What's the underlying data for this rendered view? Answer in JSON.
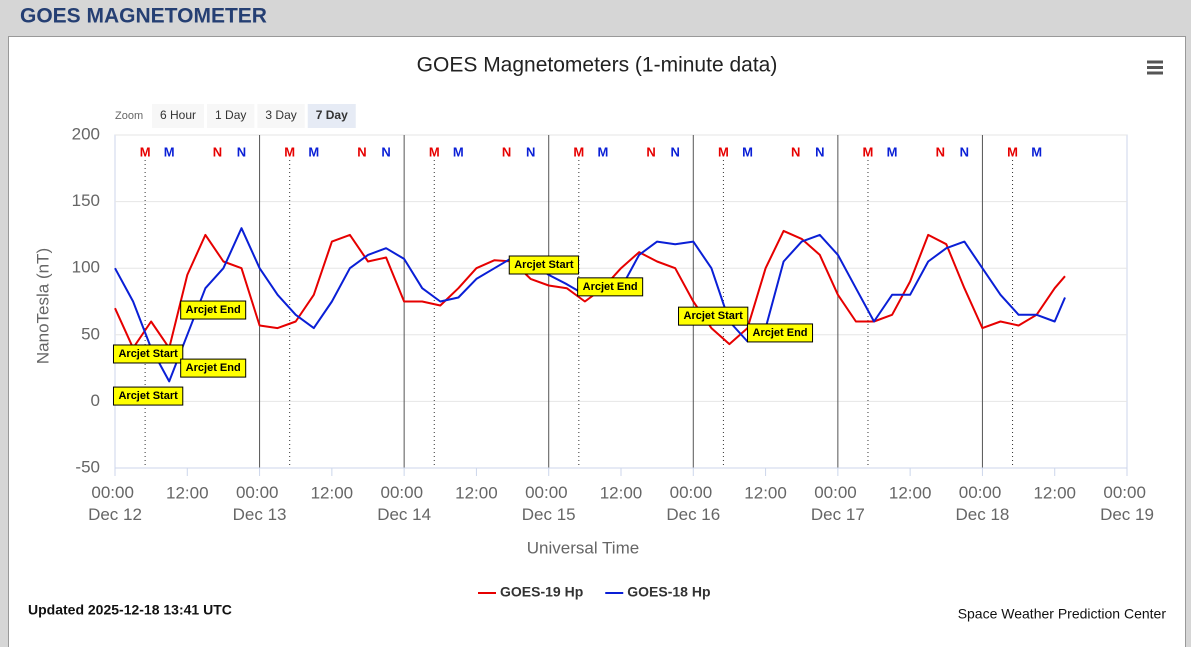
{
  "header": {
    "title": "GOES MAGNETOMETER"
  },
  "zoom": {
    "label": "Zoom",
    "buttons": [
      "6 Hour",
      "1 Day",
      "3 Day",
      "7 Day"
    ],
    "selected": 3
  },
  "footer": {
    "updated": "Updated 2025-12-18 13:41 UTC",
    "credit": "Space Weather Prediction Center"
  },
  "chart_data": {
    "type": "line",
    "title": "GOES Magnetometers (1-minute data)",
    "x_label": "Universal Time",
    "y_label": "NanoTesla (nT)",
    "xlim": [
      0,
      168
    ],
    "xticks": [
      {
        "value": 0,
        "label": "00:00 Dec 12"
      },
      {
        "value": 12,
        "label": "12:00"
      },
      {
        "value": 24,
        "label": "00:00 Dec 13"
      },
      {
        "value": 36,
        "label": "12:00"
      },
      {
        "value": 48,
        "label": "00:00 Dec 14"
      },
      {
        "value": 60,
        "label": "12:00"
      },
      {
        "value": 72,
        "label": "00:00 Dec 15"
      },
      {
        "value": 84,
        "label": "12:00"
      },
      {
        "value": 96,
        "label": "00:00 Dec 16"
      },
      {
        "value": 108,
        "label": "12:00"
      },
      {
        "value": 120,
        "label": "00:00 Dec 17"
      },
      {
        "value": 132,
        "label": "12:00"
      },
      {
        "value": 144,
        "label": "00:00 Dec 18"
      },
      {
        "value": 156,
        "label": "12:00"
      },
      {
        "value": 168,
        "label": "00:00 Dec 19"
      }
    ],
    "ylim": [
      -50,
      200
    ],
    "yticks": [
      -50,
      0,
      50,
      100,
      150,
      200
    ],
    "grid": true,
    "x": [
      0,
      3,
      6,
      9,
      12,
      15,
      18,
      21,
      24,
      27,
      30,
      33,
      36,
      39,
      42,
      45,
      48,
      51,
      54,
      57,
      60,
      63,
      66,
      69,
      72,
      75,
      78,
      81,
      84,
      87,
      90,
      93,
      96,
      99,
      102,
      105,
      108,
      111,
      114,
      117,
      120,
      123,
      126,
      129,
      132,
      135,
      138,
      141,
      144,
      147,
      150,
      153,
      156,
      157.7
    ],
    "series": [
      {
        "name": "GOES-19 Hp",
        "color": "#e60000",
        "values": [
          70,
          40,
          60,
          40,
          95,
          125,
          105,
          100,
          57,
          55,
          60,
          80,
          120,
          125,
          105,
          108,
          75,
          75,
          72,
          85,
          100,
          106,
          105,
          92,
          87,
          85,
          75,
          85,
          100,
          112,
          105,
          100,
          75,
          55,
          43,
          55,
          100,
          128,
          122,
          110,
          80,
          60,
          60,
          65,
          90,
          125,
          118,
          85,
          55,
          60,
          57,
          65,
          85,
          94
        ]
      },
      {
        "name": "GOES-18 Hp",
        "color": "#0a1fd6",
        "values": [
          100,
          75,
          40,
          15,
          50,
          85,
          100,
          130,
          100,
          80,
          65,
          55,
          75,
          100,
          110,
          115,
          107,
          85,
          75,
          78,
          92,
          100,
          108,
          105,
          95,
          88,
          80,
          80,
          85,
          110,
          120,
          118,
          120,
          100,
          60,
          45,
          55,
          105,
          120,
          125,
          110,
          85,
          60,
          80,
          80,
          105,
          115,
          120,
          100,
          80,
          65,
          65,
          60,
          78
        ]
      }
    ],
    "markers": [
      {
        "text": "M",
        "x": 5,
        "color": "#e60000",
        "dashed": true
      },
      {
        "text": "M",
        "x": 9,
        "color": "#0a1fd6"
      },
      {
        "text": "N",
        "x": 17,
        "color": "#e60000"
      },
      {
        "text": "N",
        "x": 21,
        "color": "#0a1fd6"
      },
      {
        "text": "M",
        "x": 29,
        "color": "#e60000",
        "dashed": true
      },
      {
        "text": "M",
        "x": 33,
        "color": "#0a1fd6"
      },
      {
        "text": "N",
        "x": 41,
        "color": "#e60000"
      },
      {
        "text": "N",
        "x": 45,
        "color": "#0a1fd6"
      },
      {
        "text": "M",
        "x": 53,
        "color": "#e60000",
        "dashed": true
      },
      {
        "text": "M",
        "x": 57,
        "color": "#0a1fd6"
      },
      {
        "text": "N",
        "x": 65,
        "color": "#e60000"
      },
      {
        "text": "N",
        "x": 69,
        "color": "#0a1fd6"
      },
      {
        "text": "M",
        "x": 77,
        "color": "#e60000",
        "dashed": true
      },
      {
        "text": "M",
        "x": 81,
        "color": "#0a1fd6"
      },
      {
        "text": "N",
        "x": 89,
        "color": "#e60000"
      },
      {
        "text": "N",
        "x": 93,
        "color": "#0a1fd6"
      },
      {
        "text": "M",
        "x": 101,
        "color": "#e60000",
        "dashed": true
      },
      {
        "text": "M",
        "x": 105,
        "color": "#0a1fd6"
      },
      {
        "text": "N",
        "x": 113,
        "color": "#e60000"
      },
      {
        "text": "N",
        "x": 117,
        "color": "#0a1fd6"
      },
      {
        "text": "M",
        "x": 125,
        "color": "#e60000",
        "dashed": true
      },
      {
        "text": "M",
        "x": 129,
        "color": "#0a1fd6"
      },
      {
        "text": "N",
        "x": 137,
        "color": "#e60000"
      },
      {
        "text": "N",
        "x": 141,
        "color": "#0a1fd6"
      },
      {
        "text": "M",
        "x": 149,
        "color": "#e60000",
        "dashed": true
      },
      {
        "text": "M",
        "x": 153,
        "color": "#0a1fd6"
      }
    ],
    "annotations": [
      {
        "text": "Arcjet Start",
        "x": 5.5,
        "y": 35.6
      },
      {
        "text": "Arcjet Start",
        "x": 5.5,
        "y": 4
      },
      {
        "text": "Arcjet End",
        "x": 16.3,
        "y": 68.6
      },
      {
        "text": "Arcjet End",
        "x": 16.3,
        "y": 25
      },
      {
        "text": "Arcjet Start",
        "x": 71.2,
        "y": 102.4
      },
      {
        "text": "Arcjet End",
        "x": 82.2,
        "y": 86
      },
      {
        "text": "Arcjet Start",
        "x": 99.3,
        "y": 64
      },
      {
        "text": "Arcjet End",
        "x": 110.4,
        "y": 51.4
      }
    ]
  }
}
